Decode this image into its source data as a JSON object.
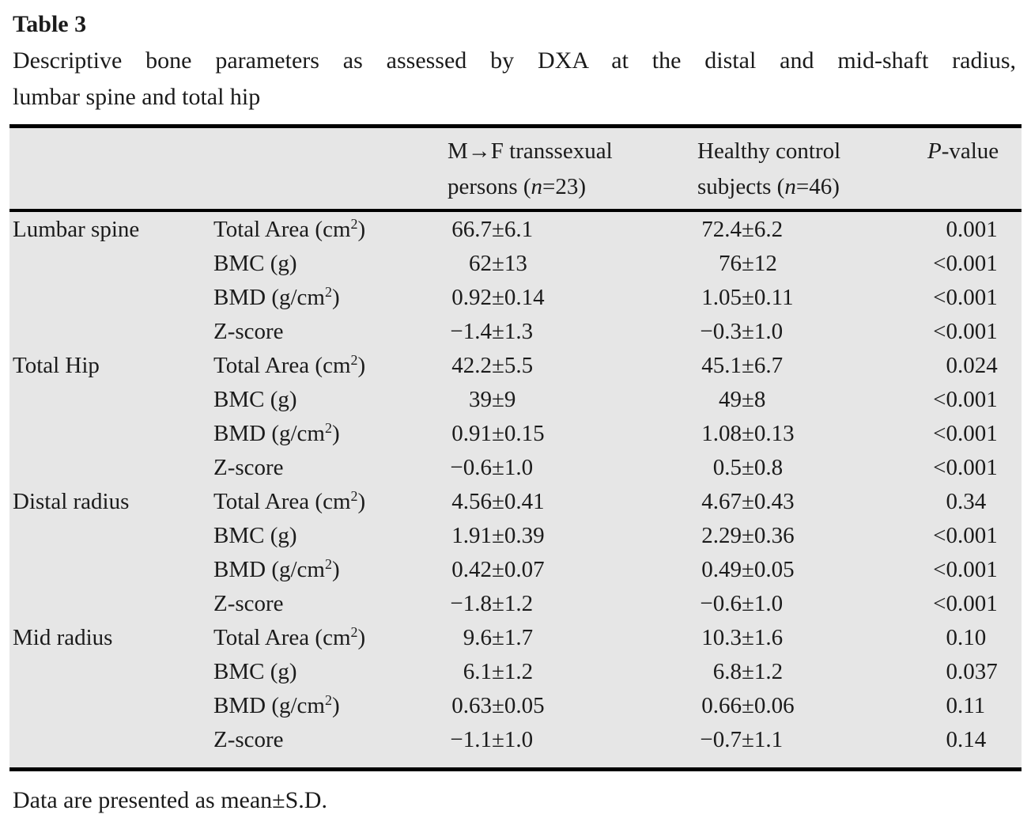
{
  "title": "Table 3",
  "caption_line1": "Descriptive bone parameters as assessed by DXA at the distal and mid-shaft radius,",
  "caption_line2": "lumbar spine and total hip",
  "footnote": "Data are presented as mean±S.D.",
  "table": {
    "headers": {
      "region": "",
      "parameter": "",
      "mf": "M→F transsexual<br>persons (<i>n</i>=23)",
      "hc": "Healthy control<br>subjects (<i>n</i>=46)",
      "p": "<i>P</i>-value"
    },
    "sections": [
      {
        "region": "Lumbar spine",
        "rows": [
          {
            "parameter": "Total Area (cm<sup>2</sup>)",
            "mf": "66.7±6.1",
            "hc": "72.4±6.2",
            "p": "0.001"
          },
          {
            "parameter": "BMC (g)",
            "mf": "62±13",
            "hc": "76±12",
            "p": "<0.001"
          },
          {
            "parameter": "BMD (g/cm<sup>2</sup>)",
            "mf": "0.92±0.14",
            "hc": "1.05±0.11",
            "p": "<0.001"
          },
          {
            "parameter": "Z-score",
            "mf": "−1.4±1.3",
            "hc": "−0.3±1.0",
            "p": "<0.001"
          }
        ]
      },
      {
        "region": "Total Hip",
        "rows": [
          {
            "parameter": "Total Area (cm<sup>2</sup>)",
            "mf": "42.2±5.5",
            "hc": "45.1±6.7",
            "p": "0.024"
          },
          {
            "parameter": "BMC (g)",
            "mf": "39±9",
            "hc": "49±8",
            "p": "<0.001"
          },
          {
            "parameter": "BMD (g/cm<sup>2</sup>)",
            "mf": "0.91±0.15",
            "hc": "1.08±0.13",
            "p": "<0.001"
          },
          {
            "parameter": "Z-score",
            "mf": "−0.6±1.0",
            "hc": "0.5±0.8",
            "p": "<0.001"
          }
        ]
      },
      {
        "region": "Distal radius",
        "rows": [
          {
            "parameter": "Total Area (cm<sup>2</sup>)",
            "mf": "4.56±0.41",
            "hc": "4.67±0.43",
            "p": "0.34"
          },
          {
            "parameter": "BMC (g)",
            "mf": "1.91±0.39",
            "hc": "2.29±0.36",
            "p": "<0.001"
          },
          {
            "parameter": "BMD (g/cm<sup>2</sup>)",
            "mf": "0.42±0.07",
            "hc": "0.49±0.05",
            "p": "<0.001"
          },
          {
            "parameter": "Z-score",
            "mf": "−1.8±1.2",
            "hc": "−0.6±1.0",
            "p": "<0.001"
          }
        ]
      },
      {
        "region": "Mid radius",
        "rows": [
          {
            "parameter": "Total Area (cm<sup>2</sup>)",
            "mf": "9.6±1.7",
            "hc": "10.3±1.6",
            "p": "0.10"
          },
          {
            "parameter": "BMC (g)",
            "mf": "6.1±1.2",
            "hc": "6.8±1.2",
            "p": "0.037"
          },
          {
            "parameter": "BMD (g/cm<sup>2</sup>)",
            "mf": "0.63±0.05",
            "hc": "0.66±0.06",
            "p": "0.11"
          },
          {
            "parameter": "Z-score",
            "mf": "−1.1±1.0",
            "hc": "−0.7±1.1",
            "p": "0.14"
          }
        ]
      }
    ]
  }
}
